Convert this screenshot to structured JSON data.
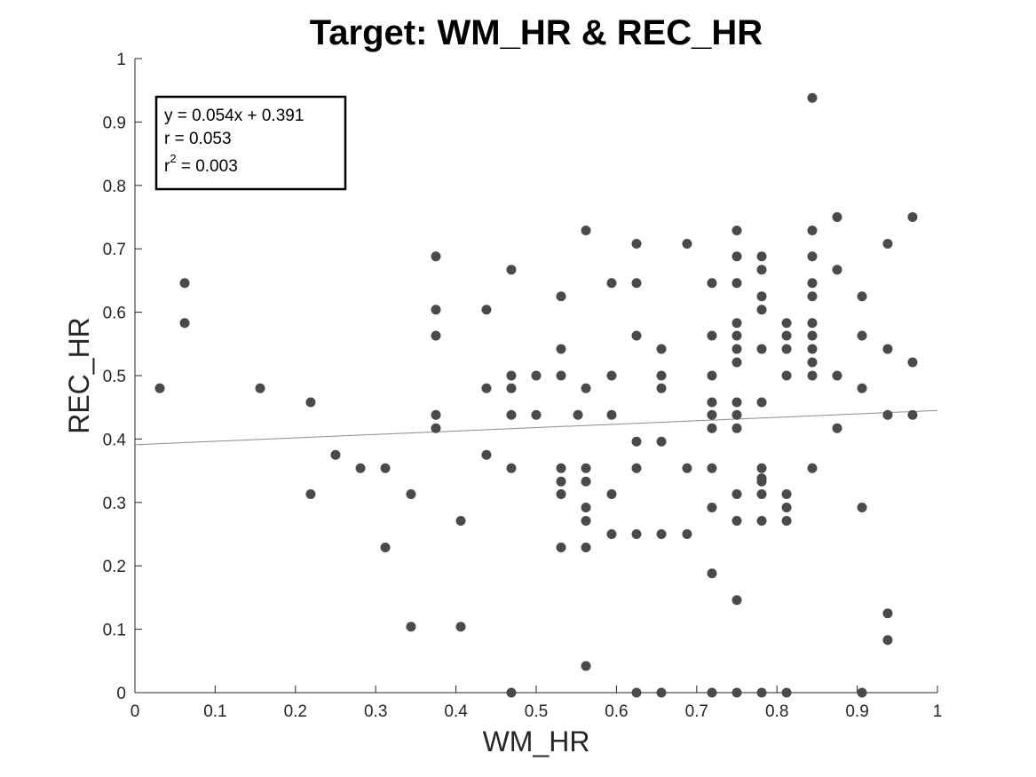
{
  "chart_data": {
    "type": "scatter",
    "title": "Target: WM_HR & REC_HR",
    "xlabel": "WM_HR",
    "ylabel": "REC_HR",
    "xlim": [
      0,
      1
    ],
    "ylim": [
      0,
      1
    ],
    "xticks": [
      "0",
      "0.1",
      "0.2",
      "0.3",
      "0.4",
      "0.5",
      "0.6",
      "0.7",
      "0.8",
      "0.9",
      "1"
    ],
    "yticks": [
      "0",
      "0.1",
      "0.2",
      "0.3",
      "0.4",
      "0.5",
      "0.6",
      "0.7",
      "0.8",
      "0.9",
      "1"
    ],
    "grid": false,
    "marker_color": "#4a4a4a",
    "line_color": "#8c8c8c",
    "fit": {
      "slope": 0.054,
      "intercept": 0.391
    },
    "stats": {
      "equation": "y = 0.054x + 0.391",
      "r": "r = 0.053",
      "r2_base": "r",
      "r2_sup": "2",
      "r2_value": " = 0.003"
    },
    "points": [
      [
        0.031,
        0.48
      ],
      [
        0.062,
        0.646
      ],
      [
        0.062,
        0.583
      ],
      [
        0.156,
        0.48
      ],
      [
        0.219,
        0.458
      ],
      [
        0.219,
        0.313
      ],
      [
        0.25,
        0.375
      ],
      [
        0.281,
        0.354
      ],
      [
        0.312,
        0.354
      ],
      [
        0.312,
        0.229
      ],
      [
        0.344,
        0.313
      ],
      [
        0.344,
        0.104
      ],
      [
        0.375,
        0.688
      ],
      [
        0.375,
        0.604
      ],
      [
        0.375,
        0.563
      ],
      [
        0.375,
        0.438
      ],
      [
        0.375,
        0.417
      ],
      [
        0.406,
        0.271
      ],
      [
        0.406,
        0.104
      ],
      [
        0.438,
        0.604
      ],
      [
        0.438,
        0.48
      ],
      [
        0.438,
        0.375
      ],
      [
        0.469,
        0.667
      ],
      [
        0.469,
        0.5
      ],
      [
        0.469,
        0.48
      ],
      [
        0.469,
        0.438
      ],
      [
        0.469,
        0.354
      ],
      [
        0.469,
        0.0
      ],
      [
        0.5,
        0.5
      ],
      [
        0.5,
        0.438
      ],
      [
        0.531,
        0.625
      ],
      [
        0.531,
        0.542
      ],
      [
        0.531,
        0.5
      ],
      [
        0.531,
        0.354
      ],
      [
        0.531,
        0.333
      ],
      [
        0.531,
        0.313
      ],
      [
        0.531,
        0.229
      ],
      [
        0.552,
        0.438
      ],
      [
        0.562,
        0.729
      ],
      [
        0.562,
        0.48
      ],
      [
        0.562,
        0.354
      ],
      [
        0.562,
        0.333
      ],
      [
        0.562,
        0.292
      ],
      [
        0.562,
        0.271
      ],
      [
        0.562,
        0.229
      ],
      [
        0.562,
        0.042
      ],
      [
        0.594,
        0.646
      ],
      [
        0.594,
        0.5
      ],
      [
        0.594,
        0.438
      ],
      [
        0.594,
        0.313
      ],
      [
        0.594,
        0.25
      ],
      [
        0.625,
        0.708
      ],
      [
        0.625,
        0.646
      ],
      [
        0.625,
        0.563
      ],
      [
        0.625,
        0.396
      ],
      [
        0.625,
        0.354
      ],
      [
        0.625,
        0.25
      ],
      [
        0.625,
        0.0
      ],
      [
        0.656,
        0.542
      ],
      [
        0.656,
        0.5
      ],
      [
        0.656,
        0.48
      ],
      [
        0.656,
        0.396
      ],
      [
        0.656,
        0.25
      ],
      [
        0.656,
        0.0
      ],
      [
        0.688,
        0.708
      ],
      [
        0.688,
        0.354
      ],
      [
        0.688,
        0.25
      ],
      [
        0.719,
        0.646
      ],
      [
        0.719,
        0.563
      ],
      [
        0.719,
        0.5
      ],
      [
        0.719,
        0.458
      ],
      [
        0.719,
        0.438
      ],
      [
        0.719,
        0.417
      ],
      [
        0.719,
        0.354
      ],
      [
        0.719,
        0.292
      ],
      [
        0.719,
        0.188
      ],
      [
        0.719,
        0.0
      ],
      [
        0.75,
        0.729
      ],
      [
        0.75,
        0.688
      ],
      [
        0.75,
        0.646
      ],
      [
        0.75,
        0.583
      ],
      [
        0.75,
        0.563
      ],
      [
        0.75,
        0.542
      ],
      [
        0.75,
        0.521
      ],
      [
        0.75,
        0.458
      ],
      [
        0.75,
        0.438
      ],
      [
        0.75,
        0.417
      ],
      [
        0.75,
        0.313
      ],
      [
        0.75,
        0.271
      ],
      [
        0.75,
        0.146
      ],
      [
        0.75,
        0.0
      ],
      [
        0.781,
        0.688
      ],
      [
        0.781,
        0.667
      ],
      [
        0.781,
        0.625
      ],
      [
        0.781,
        0.604
      ],
      [
        0.781,
        0.542
      ],
      [
        0.781,
        0.458
      ],
      [
        0.781,
        0.354
      ],
      [
        0.781,
        0.338
      ],
      [
        0.781,
        0.333
      ],
      [
        0.781,
        0.313
      ],
      [
        0.781,
        0.271
      ],
      [
        0.781,
        0.0
      ],
      [
        0.812,
        0.583
      ],
      [
        0.812,
        0.563
      ],
      [
        0.812,
        0.542
      ],
      [
        0.812,
        0.5
      ],
      [
        0.812,
        0.313
      ],
      [
        0.812,
        0.292
      ],
      [
        0.812,
        0.271
      ],
      [
        0.812,
        0.0
      ],
      [
        0.844,
        0.938
      ],
      [
        0.844,
        0.729
      ],
      [
        0.844,
        0.688
      ],
      [
        0.844,
        0.646
      ],
      [
        0.844,
        0.625
      ],
      [
        0.844,
        0.583
      ],
      [
        0.844,
        0.563
      ],
      [
        0.844,
        0.542
      ],
      [
        0.844,
        0.521
      ],
      [
        0.844,
        0.5
      ],
      [
        0.844,
        0.354
      ],
      [
        0.875,
        0.75
      ],
      [
        0.875,
        0.667
      ],
      [
        0.875,
        0.5
      ],
      [
        0.875,
        0.417
      ],
      [
        0.906,
        0.625
      ],
      [
        0.906,
        0.563
      ],
      [
        0.906,
        0.48
      ],
      [
        0.906,
        0.292
      ],
      [
        0.906,
        0.0
      ],
      [
        0.938,
        0.708
      ],
      [
        0.938,
        0.542
      ],
      [
        0.938,
        0.438
      ],
      [
        0.938,
        0.125
      ],
      [
        0.938,
        0.083
      ],
      [
        0.969,
        0.75
      ],
      [
        0.969,
        0.521
      ],
      [
        0.969,
        0.438
      ]
    ]
  }
}
